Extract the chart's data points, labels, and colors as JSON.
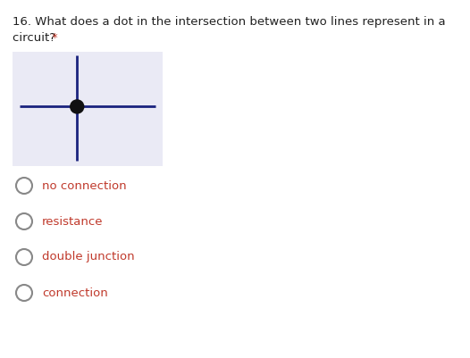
{
  "title_line1": "16. What does a dot in the intersection between two lines represent in a",
  "title_line2": "circuit? ",
  "title_asterisk": "*",
  "title_color": "#212121",
  "asterisk_color": "#c0392b",
  "background_color": "#ffffff",
  "box_bg_color": "#eaeaf5",
  "line_color": "#1a237e",
  "dot_color": "#111111",
  "options": [
    "no connection",
    "resistance",
    "double junction",
    "connection"
  ],
  "option_color": "#c0392b",
  "circle_edge_color": "#888888",
  "title_fontsize": 9.5,
  "option_fontsize": 9.5
}
